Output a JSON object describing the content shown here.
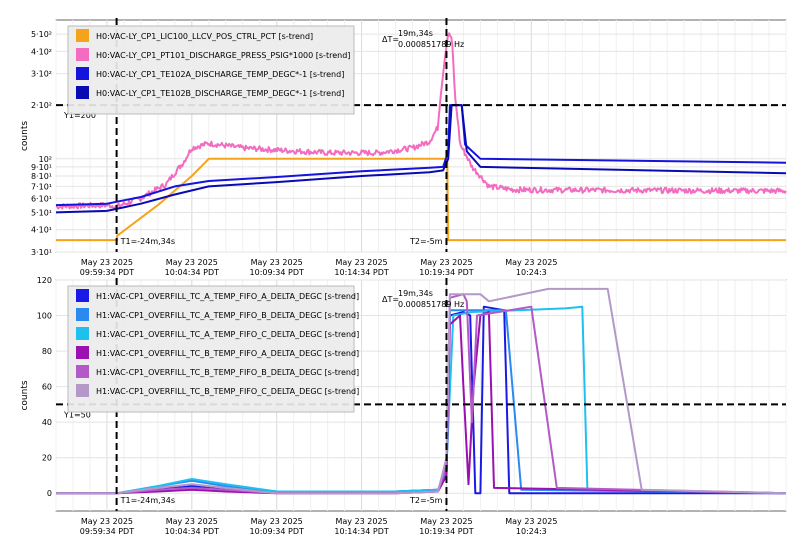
{
  "chart_data": [
    {
      "type": "line",
      "ylabel": "counts",
      "yscale": "log",
      "ylim": [
        30,
        600
      ],
      "xlim_minutes": [
        -28,
        15
      ],
      "grid": true,
      "legend_position": "top-left",
      "y_ticks": [
        {
          "v": 30,
          "label": "3·10¹"
        },
        {
          "v": 40,
          "label": "4·10¹"
        },
        {
          "v": 50,
          "label": "5·10¹"
        },
        {
          "v": 60,
          "label": "6·10¹"
        },
        {
          "v": 70,
          "label": "7·10¹"
        },
        {
          "v": 80,
          "label": "8·10¹"
        },
        {
          "v": 90,
          "label": "9·10¹"
        },
        {
          "v": 100,
          "label": "10²"
        },
        {
          "v": 200,
          "label": "2·10²"
        },
        {
          "v": 300,
          "label": "3·10²"
        },
        {
          "v": 400,
          "label": "4·10²"
        },
        {
          "v": 500,
          "label": "5·10²"
        }
      ],
      "x_ticks": [
        {
          "t": -25,
          "date": "May 23 2025",
          "time": "09:59:34 PDT"
        },
        {
          "t": -20,
          "date": "May 23 2025",
          "time": "10:04:34 PDT"
        },
        {
          "t": -15,
          "date": "May 23 2025",
          "time": "10:09:34 PDT"
        },
        {
          "t": -10,
          "date": "May 23 2025",
          "time": "10:14:34 PDT"
        },
        {
          "t": -5,
          "date": "May 23 2025",
          "time": "10:19:34 PDT"
        },
        {
          "t": 0,
          "date": "May 23 2025",
          "time": "10:24:3"
        }
      ],
      "cursors": {
        "t1": -24.43,
        "t2": -5,
        "y1": 200,
        "t1_label": "T1=-24m,34s",
        "t2_label": "T2=-5m",
        "y1_label": "Y1=200"
      },
      "delta": {
        "label": "ΔT=",
        "value": "19m,34s",
        "freq": "0.000851789 Hz"
      },
      "series": [
        {
          "name": "H0:VAC-LY_CP1_LIC100_LLCV_POS_CTRL_PCT [s-trend]",
          "color": "#f5a31a",
          "noise": 0,
          "points": [
            [
              -28,
              35
            ],
            [
              -24.4,
              35
            ],
            [
              -24.4,
              37
            ],
            [
              -22,
              55
            ],
            [
              -20,
              80
            ],
            [
              -19,
              100
            ],
            [
              -5,
              100
            ],
            [
              -4.95,
              98
            ],
            [
              -4.9,
              35
            ],
            [
              15,
              35
            ]
          ]
        },
        {
          "name": "H0:VAC-LY_CP1_PT101_DISCHARGE_PRESS_PSIG*1000 [s-trend]",
          "color": "#f26cbf",
          "noise": 0.035,
          "points": [
            [
              -28,
              54
            ],
            [
              -25,
              55
            ],
            [
              -24.4,
              54
            ],
            [
              -23,
              60
            ],
            [
              -21.5,
              72
            ],
            [
              -20.5,
              95
            ],
            [
              -20,
              115
            ],
            [
              -19,
              122
            ],
            [
              -17,
              115
            ],
            [
              -15,
              112
            ],
            [
              -12,
              108
            ],
            [
              -9,
              108
            ],
            [
              -7,
              115
            ],
            [
              -6,
              125
            ],
            [
              -5.5,
              150
            ],
            [
              -5.2,
              300
            ],
            [
              -4.9,
              500
            ],
            [
              -4.7,
              480
            ],
            [
              -4.5,
              220
            ],
            [
              -4.2,
              120
            ],
            [
              -3.5,
              90
            ],
            [
              -2.5,
              70
            ],
            [
              -1,
              67
            ],
            [
              15,
              66
            ]
          ]
        },
        {
          "name": "H0:VAC-LY_CP1_TE102A_DISCHARGE_TEMP_DEGC*-1 [s-trend]",
          "color": "#1414dc",
          "noise": 0,
          "points": [
            [
              -28,
              55
            ],
            [
              -25,
              56
            ],
            [
              -23,
              61
            ],
            [
              -21,
              70
            ],
            [
              -19,
              75
            ],
            [
              -15,
              79
            ],
            [
              -10,
              85
            ],
            [
              -6,
              89
            ],
            [
              -5.2,
              90
            ],
            [
              -4.9,
              110
            ],
            [
              -4.8,
              200
            ],
            [
              -4.1,
              200
            ],
            [
              -3.9,
              120
            ],
            [
              -3,
              100
            ],
            [
              15,
              95
            ]
          ]
        },
        {
          "name": "H0:VAC-LY_CP1_TE102B_DISCHARGE_TEMP_DEGC*-1 [s-trend]",
          "color": "#0a0ab4",
          "noise": 0,
          "points": [
            [
              -28,
              50
            ],
            [
              -25,
              51
            ],
            [
              -23,
              56
            ],
            [
              -21,
              63
            ],
            [
              -19,
              70
            ],
            [
              -15,
              74
            ],
            [
              -10,
              80
            ],
            [
              -6,
              84
            ],
            [
              -5.2,
              86
            ],
            [
              -4.9,
              100
            ],
            [
              -4.7,
              200
            ],
            [
              -4.1,
              200
            ],
            [
              -3.8,
              110
            ],
            [
              -3,
              90
            ],
            [
              15,
              83
            ]
          ]
        }
      ]
    },
    {
      "type": "line",
      "ylabel": "counts",
      "ylim": [
        -10,
        120
      ],
      "xlim_minutes": [
        -28,
        15
      ],
      "grid": true,
      "legend_position": "top-left",
      "y_ticks": [
        {
          "v": 0,
          "label": "0"
        },
        {
          "v": 20,
          "label": "20"
        },
        {
          "v": 40,
          "label": "40"
        },
        {
          "v": 60,
          "label": "60"
        },
        {
          "v": 80,
          "label": "80"
        },
        {
          "v": 100,
          "label": "100"
        },
        {
          "v": 120,
          "label": "120"
        }
      ],
      "x_ticks": [
        {
          "t": -25,
          "date": "May 23 2025",
          "time": "09:59:34 PDT"
        },
        {
          "t": -20,
          "date": "May 23 2025",
          "time": "10:04:34 PDT"
        },
        {
          "t": -15,
          "date": "May 23 2025",
          "time": "10:09:34 PDT"
        },
        {
          "t": -10,
          "date": "May 23 2025",
          "time": "10:14:34 PDT"
        },
        {
          "t": -5,
          "date": "May 23 2025",
          "time": "10:19:34 PDT"
        },
        {
          "t": 0,
          "date": "May 23 2025",
          "time": "10:24:3"
        }
      ],
      "cursors": {
        "t1": -24.43,
        "t2": -5,
        "y1": 50,
        "t1_label": "T1=-24m,34s",
        "t2_label": "T2=-5m",
        "y1_label": "Y1=50"
      },
      "delta": {
        "label": "ΔT=",
        "value": "19m,34s",
        "freq": "0.000851789 Hz"
      },
      "series": [
        {
          "name": "H1:VAC-CP1_OVERFILL_TC_A_TEMP_FIFO_A_DELTA_DEGC [s-trend]",
          "color": "#1a1ae6",
          "noise": 0,
          "points": [
            [
              -28,
              0
            ],
            [
              -24.4,
              0
            ],
            [
              -22,
              2
            ],
            [
              -20,
              4
            ],
            [
              -18,
              2
            ],
            [
              -15,
              1
            ],
            [
              -8,
              1
            ],
            [
              -5.5,
              2
            ],
            [
              -5,
              10
            ],
            [
              -4.8,
              100
            ],
            [
              -4,
              102
            ],
            [
              -3.6,
              100
            ],
            [
              -3.3,
              0
            ],
            [
              -3,
              0
            ],
            [
              -2.8,
              105
            ],
            [
              -1.6,
              103
            ],
            [
              -1.3,
              0
            ],
            [
              15,
              0
            ]
          ]
        },
        {
          "name": "H1:VAC-CP1_OVERFILL_TC_A_TEMP_FIFO_B_DELTA_DEGC [s-trend]",
          "color": "#2a8af0",
          "noise": 0,
          "points": [
            [
              -28,
              0
            ],
            [
              -24.4,
              0
            ],
            [
              -22,
              4
            ],
            [
              -20,
              7
            ],
            [
              -18,
              4
            ],
            [
              -15,
              1
            ],
            [
              -8,
              1
            ],
            [
              -5.5,
              2
            ],
            [
              -5,
              12
            ],
            [
              -4.8,
              103
            ],
            [
              -3,
              103
            ],
            [
              -1.5,
              103
            ],
            [
              -0.6,
              2
            ],
            [
              15,
              0
            ]
          ]
        },
        {
          "name": "H1:VAC-CP1_OVERFILL_TC_A_TEMP_FIFO_C_DELTA_DEGC [s-trend]",
          "color": "#1ec0f0",
          "noise": 0,
          "points": [
            [
              -28,
              0
            ],
            [
              -24.4,
              0
            ],
            [
              -22,
              4
            ],
            [
              -20,
              8
            ],
            [
              -18,
              5
            ],
            [
              -15,
              1
            ],
            [
              -8,
              1
            ],
            [
              -5.5,
              2
            ],
            [
              -5,
              15
            ],
            [
              -4.6,
              100
            ],
            [
              -3.5,
              102
            ],
            [
              2,
              104
            ],
            [
              3,
              105
            ],
            [
              3.3,
              2
            ],
            [
              15,
              0
            ]
          ]
        },
        {
          "name": "H1:VAC-CP1_OVERFILL_TC_B_TEMP_FIFO_A_DELTA_DEGC [s-trend]",
          "color": "#9a10b0",
          "noise": 0,
          "points": [
            [
              -28,
              0
            ],
            [
              -24.4,
              0
            ],
            [
              -22,
              1
            ],
            [
              -20,
              2
            ],
            [
              -18,
              1
            ],
            [
              -15,
              0
            ],
            [
              -8,
              0
            ],
            [
              -5.5,
              1
            ],
            [
              -5,
              10
            ],
            [
              -4.8,
              95
            ],
            [
              -4.2,
              100
            ],
            [
              -4,
              60
            ],
            [
              -3.7,
              5
            ],
            [
              -3.4,
              60
            ],
            [
              -3,
              100
            ],
            [
              -2.5,
              102
            ],
            [
              -2.2,
              3
            ],
            [
              15,
              0
            ]
          ]
        },
        {
          "name": "H1:VAC-CP1_OVERFILL_TC_B_TEMP_FIFO_B_DELTA_DEGC [s-trend]",
          "color": "#b45ac8",
          "noise": 0,
          "points": [
            [
              -28,
              0
            ],
            [
              -24.4,
              0
            ],
            [
              -22,
              2
            ],
            [
              -20,
              3
            ],
            [
              -18,
              2
            ],
            [
              -15,
              0
            ],
            [
              -8,
              0
            ],
            [
              -5.5,
              1
            ],
            [
              -5,
              15
            ],
            [
              -4.8,
              110
            ],
            [
              -4,
              112
            ],
            [
              -3.8,
              108
            ],
            [
              -3.5,
              40
            ],
            [
              -3.2,
              100
            ],
            [
              0,
              105
            ],
            [
              1.5,
              3
            ],
            [
              15,
              0
            ]
          ]
        },
        {
          "name": "H1:VAC-CP1_OVERFILL_TC_B_TEMP_FIFO_C_DELTA_DEGC [s-trend]",
          "color": "#b498c8",
          "noise": 0,
          "points": [
            [
              -28,
              0
            ],
            [
              -24.4,
              0
            ],
            [
              -22,
              3
            ],
            [
              -20,
              5
            ],
            [
              -18,
              3
            ],
            [
              -15,
              0
            ],
            [
              -8,
              0
            ],
            [
              -5.5,
              1
            ],
            [
              -5,
              20
            ],
            [
              -4.8,
              112
            ],
            [
              -3,
              112
            ],
            [
              -2.5,
              108
            ],
            [
              -1,
              111
            ],
            [
              1,
              115
            ],
            [
              4.5,
              115
            ],
            [
              6.5,
              2
            ],
            [
              15,
              0
            ]
          ]
        }
      ]
    }
  ]
}
